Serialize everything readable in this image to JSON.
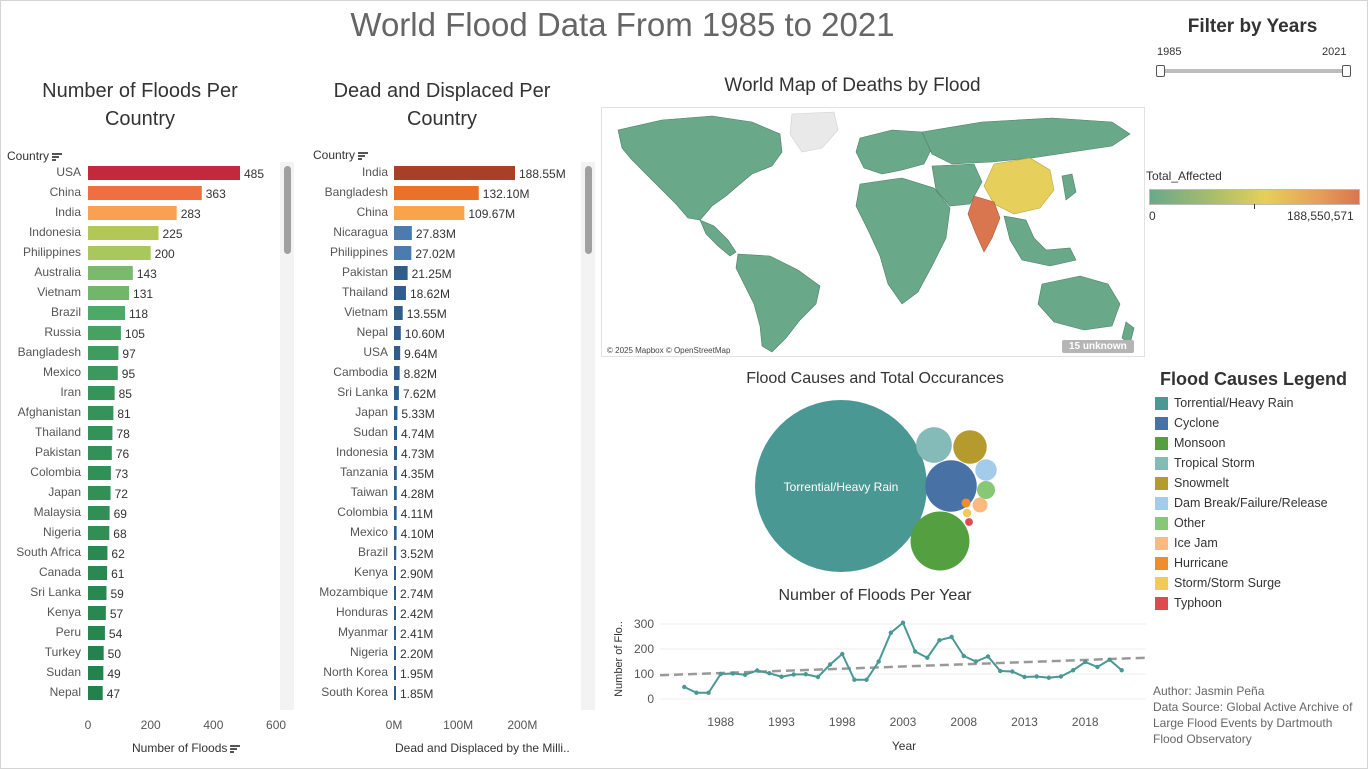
{
  "dashboard": {
    "title": "World Flood Data From 1985 to 2021",
    "filter": {
      "title": "Filter by Years",
      "min_label": "1985",
      "max_label": "2021",
      "range": [
        1985,
        2021
      ]
    },
    "footnote": {
      "author": "Author: Jasmin Peña",
      "source": "Data Source: Global Active Archive of Large Flood Events by Dartmouth Flood Observatory"
    },
    "map": {
      "title": "World Map of Deaths by Flood",
      "attribution": "© 2025 Mapbox © OpenStreetMap",
      "unknown_badge": "15 unknown",
      "legend_title": "Total_Affected",
      "legend_min": "0",
      "legend_max": "188,550,571",
      "colors": {
        "low": "#6aa88a",
        "mid": "#e6cf5a",
        "high": "#d9764f",
        "ocean": "#ffffff",
        "land_na": "#e9e9e9"
      }
    },
    "causes_legend": {
      "title": "Flood Causes Legend",
      "items": [
        {
          "label": "Torrential/Heavy Rain",
          "color": "#4a9894"
        },
        {
          "label": "Cyclone",
          "color": "#4872a6"
        },
        {
          "label": "Monsoon",
          "color": "#54a041"
        },
        {
          "label": "Tropical Storm",
          "color": "#84bab7"
        },
        {
          "label": "Snowmelt",
          "color": "#b59a2d"
        },
        {
          "label": "Dam Break/Failure/Release",
          "color": "#a3cbea"
        },
        {
          "label": "Other",
          "color": "#87c876"
        },
        {
          "label": "Ice Jam",
          "color": "#fbb97f"
        },
        {
          "label": "Hurricane",
          "color": "#ef8c2e"
        },
        {
          "label": "Storm/Storm Surge",
          "color": "#f0cb57"
        },
        {
          "label": "Typhoon",
          "color": "#dd4a52"
        }
      ]
    }
  },
  "chart_data": [
    {
      "id": "floods_per_country",
      "type": "bar",
      "orientation": "horizontal",
      "title": "Number of Floods Per Country",
      "column_header": "Country",
      "xlabel": "Number of Floods",
      "xlim": [
        0,
        650
      ],
      "xticks": [
        "0",
        "200",
        "400",
        "600"
      ],
      "categories": [
        "USA",
        "China",
        "India",
        "Indonesia",
        "Philippines",
        "Australia",
        "Vietnam",
        "Brazil",
        "Russia",
        "Bangladesh",
        "Mexico",
        "Iran",
        "Afghanistan",
        "Thailand",
        "Pakistan",
        "Colombia",
        "Japan",
        "Malaysia",
        "Nigeria",
        "South Africa",
        "Canada",
        "Sri Lanka",
        "Kenya",
        "Peru",
        "Turkey",
        "Sudan",
        "Nepal"
      ],
      "values": [
        485,
        363,
        283,
        225,
        200,
        143,
        131,
        118,
        105,
        97,
        95,
        85,
        81,
        78,
        76,
        73,
        72,
        69,
        68,
        62,
        61,
        59,
        57,
        54,
        50,
        49,
        47
      ],
      "labels": [
        "485",
        "363",
        "283",
        "225",
        "200",
        "143",
        "131",
        "118",
        "105",
        "97",
        "95",
        "85",
        "81",
        "78",
        "76",
        "73",
        "72",
        "69",
        "68",
        "62",
        "61",
        "59",
        "57",
        "54",
        "50",
        "49",
        "47"
      ],
      "colors": [
        "#c4283c",
        "#ef6f42",
        "#faa052",
        "#b3c758",
        "#a8c85e",
        "#79ba6b",
        "#72b66c",
        "#4ea966",
        "#47a262",
        "#3f9c5e",
        "#3c985c",
        "#379459",
        "#359258",
        "#349157",
        "#339056",
        "#328f55",
        "#328f55",
        "#318e54",
        "#318e54",
        "#2a8951",
        "#2a8951",
        "#298850",
        "#298850",
        "#27864e",
        "#24834c",
        "#24834c",
        "#23824b"
      ]
    },
    {
      "id": "dead_displaced_per_country",
      "type": "bar",
      "orientation": "horizontal",
      "title": "Dead and Displaced Per Country",
      "column_header": "Country",
      "xlabel": "Dead and Displaced by the Milli..",
      "xlim": [
        0,
        300
      ],
      "xticks": [
        "0M",
        "100M",
        "200M"
      ],
      "categories": [
        "India",
        "Bangladesh",
        "China",
        "Nicaragua",
        "Philippines",
        "Pakistan",
        "Thailand",
        "Vietnam",
        "Nepal",
        "USA",
        "Cambodia",
        "Sri Lanka",
        "Japan",
        "Sudan",
        "Indonesia",
        "Tanzania",
        "Taiwan",
        "Colombia",
        "Mexico",
        "Brazil",
        "Kenya",
        "Mozambique",
        "Honduras",
        "Myanmar",
        "Nigeria",
        "North Korea",
        "South Korea"
      ],
      "values": [
        188.55,
        132.1,
        109.67,
        27.83,
        27.02,
        21.25,
        18.62,
        13.55,
        10.6,
        9.64,
        8.82,
        7.62,
        5.33,
        4.74,
        4.73,
        4.35,
        4.28,
        4.11,
        4.1,
        3.52,
        2.9,
        2.74,
        2.42,
        2.41,
        2.2,
        1.95,
        1.85
      ],
      "labels": [
        "188.55M",
        "132.10M",
        "109.67M",
        "27.83M",
        "27.02M",
        "21.25M",
        "18.62M",
        "13.55M",
        "10.60M",
        "9.64M",
        "8.82M",
        "7.62M",
        "5.33M",
        "4.74M",
        "4.73M",
        "4.35M",
        "4.28M",
        "4.11M",
        "4.10M",
        "3.52M",
        "2.90M",
        "2.74M",
        "2.42M",
        "2.41M",
        "2.20M",
        "1.95M",
        "1.85M"
      ],
      "colors": [
        "#a84027",
        "#e9712a",
        "#f9a34b",
        "#4a7cb0",
        "#4a7cb0",
        "#2f5d8e",
        "#2f5d8e",
        "#2f5d8e",
        "#2f5d8e",
        "#2f5d8e",
        "#2f5d8e",
        "#2f5d8e",
        "#2f5d8e",
        "#2f5d8e",
        "#2f5d8e",
        "#2f5d8e",
        "#2f5d8e",
        "#2f5d8e",
        "#2f5d8e",
        "#2f5d8e",
        "#2f5d8e",
        "#2f5d8e",
        "#2f5d8e",
        "#2f5d8e",
        "#2f5d8e",
        "#2f5d8e",
        "#2f5d8e"
      ]
    },
    {
      "id": "flood_causes_bubbles",
      "type": "bubble",
      "title": "Flood Causes and Total Occurances",
      "bubble_label": "Torrential/Heavy Rain",
      "categories": [
        "Torrential/Heavy Rain",
        "Monsoon",
        "Cyclone",
        "Tropical Storm",
        "Snowmelt",
        "Dam Break/Failure/Release",
        "Other",
        "Ice Jam",
        "Hurricane",
        "Storm/Storm Surge",
        "Typhoon"
      ],
      "values": [
        2900,
        340,
        260,
        125,
        110,
        45,
        32,
        22,
        8,
        7,
        6
      ]
    },
    {
      "id": "floods_per_year",
      "type": "line",
      "title": "Number of Floods Per Year",
      "xlabel": "Year",
      "ylabel": "Number of Flo..",
      "ylim": [
        0,
        320
      ],
      "yticks": [
        "0",
        "100",
        "200",
        "300"
      ],
      "xticks": [
        "1988",
        "1993",
        "1998",
        "2003",
        "2008",
        "2013",
        "2018"
      ],
      "x": [
        1985,
        1986,
        1987,
        1988,
        1989,
        1990,
        1991,
        1992,
        1993,
        1994,
        1995,
        1996,
        1997,
        1998,
        1999,
        2000,
        2001,
        2002,
        2003,
        2004,
        2005,
        2006,
        2007,
        2008,
        2009,
        2010,
        2011,
        2012,
        2013,
        2014,
        2015,
        2016,
        2017,
        2018,
        2019,
        2020,
        2021
      ],
      "y": [
        48,
        25,
        25,
        100,
        102,
        97,
        114,
        103,
        89,
        98,
        99,
        88,
        138,
        180,
        77,
        77,
        150,
        265,
        305,
        190,
        165,
        235,
        248,
        172,
        150,
        170,
        112,
        110,
        88,
        90,
        85,
        90,
        115,
        148,
        128,
        157,
        115
      ],
      "trend": {
        "start": [
          1983,
          95
        ],
        "end": [
          2023,
          165
        ]
      },
      "color": "#4a9894",
      "trend_color": "#999999"
    }
  ]
}
